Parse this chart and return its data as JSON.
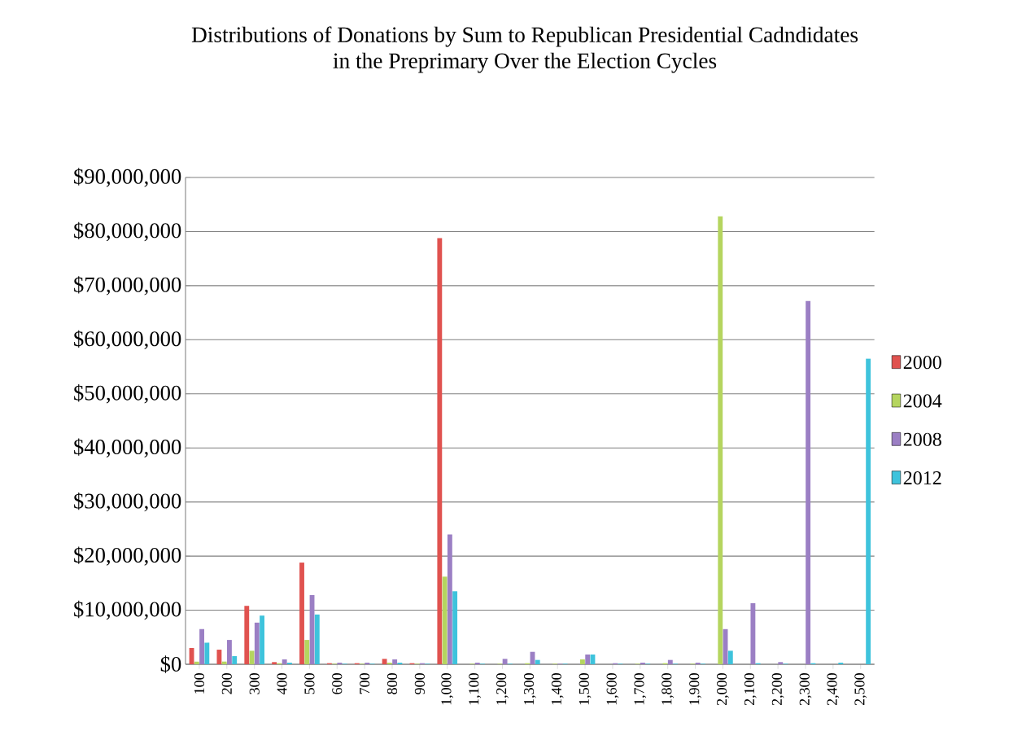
{
  "chart_data": {
    "type": "bar",
    "title": "Distributions of  Donations by Sum to Republican Presidential Cadndidates\nin the Preprimary Over the Election Cycles",
    "categories": [
      "100",
      "200",
      "300",
      "400",
      "500",
      "600",
      "700",
      "800",
      "900",
      "1,000",
      "1,100",
      "1,200",
      "1,300",
      "1,400",
      "1,500",
      "1,600",
      "1,700",
      "1,800",
      "1,900",
      "2,000",
      "2,100",
      "2,200",
      "2,300",
      "2,400",
      "2,500"
    ],
    "series": [
      {
        "name": "2000",
        "color": "#e0524f",
        "values": [
          3000000,
          2700000,
          10800000,
          400000,
          18800000,
          200000,
          200000,
          1000000,
          200000,
          78800000,
          0,
          0,
          0,
          0,
          0,
          0,
          0,
          0,
          0,
          0,
          0,
          0,
          0,
          0,
          0
        ]
      },
      {
        "name": "2004",
        "color": "#b5d55f",
        "values": [
          500000,
          500000,
          2500000,
          200000,
          4500000,
          100000,
          100000,
          300000,
          100000,
          16200000,
          100000,
          100000,
          200000,
          100000,
          900000,
          0,
          100000,
          200000,
          100000,
          82800000,
          0,
          0,
          0,
          0,
          0
        ]
      },
      {
        "name": "2008",
        "color": "#9b7fc4",
        "values": [
          6500000,
          4500000,
          7700000,
          900000,
          12800000,
          300000,
          300000,
          900000,
          200000,
          24000000,
          300000,
          1000000,
          2300000,
          100000,
          1800000,
          200000,
          300000,
          800000,
          300000,
          6500000,
          11300000,
          400000,
          67200000,
          0,
          0
        ]
      },
      {
        "name": "2012",
        "color": "#3ec3dc",
        "values": [
          4000000,
          1500000,
          9000000,
          300000,
          9200000,
          100000,
          100000,
          300000,
          100000,
          13500000,
          100000,
          100000,
          800000,
          100000,
          1800000,
          100000,
          100000,
          100000,
          100000,
          2500000,
          200000,
          100000,
          200000,
          300000,
          56500000
        ]
      }
    ],
    "ylim": [
      0,
      90000000
    ],
    "yticks": [
      {
        "value": 0,
        "label": "$0"
      },
      {
        "value": 10000000,
        "label": "$10,000,000"
      },
      {
        "value": 20000000,
        "label": "$20,000,000"
      },
      {
        "value": 30000000,
        "label": "$30,000,000"
      },
      {
        "value": 40000000,
        "label": "$40,000,000"
      },
      {
        "value": 50000000,
        "label": "$50,000,000"
      },
      {
        "value": 60000000,
        "label": "$60,000,000"
      },
      {
        "value": 70000000,
        "label": "$70,000,000"
      },
      {
        "value": 80000000,
        "label": "$80,000,000"
      },
      {
        "value": 90000000,
        "label": "$90,000,000"
      }
    ],
    "grid": "y",
    "legend": "right"
  }
}
